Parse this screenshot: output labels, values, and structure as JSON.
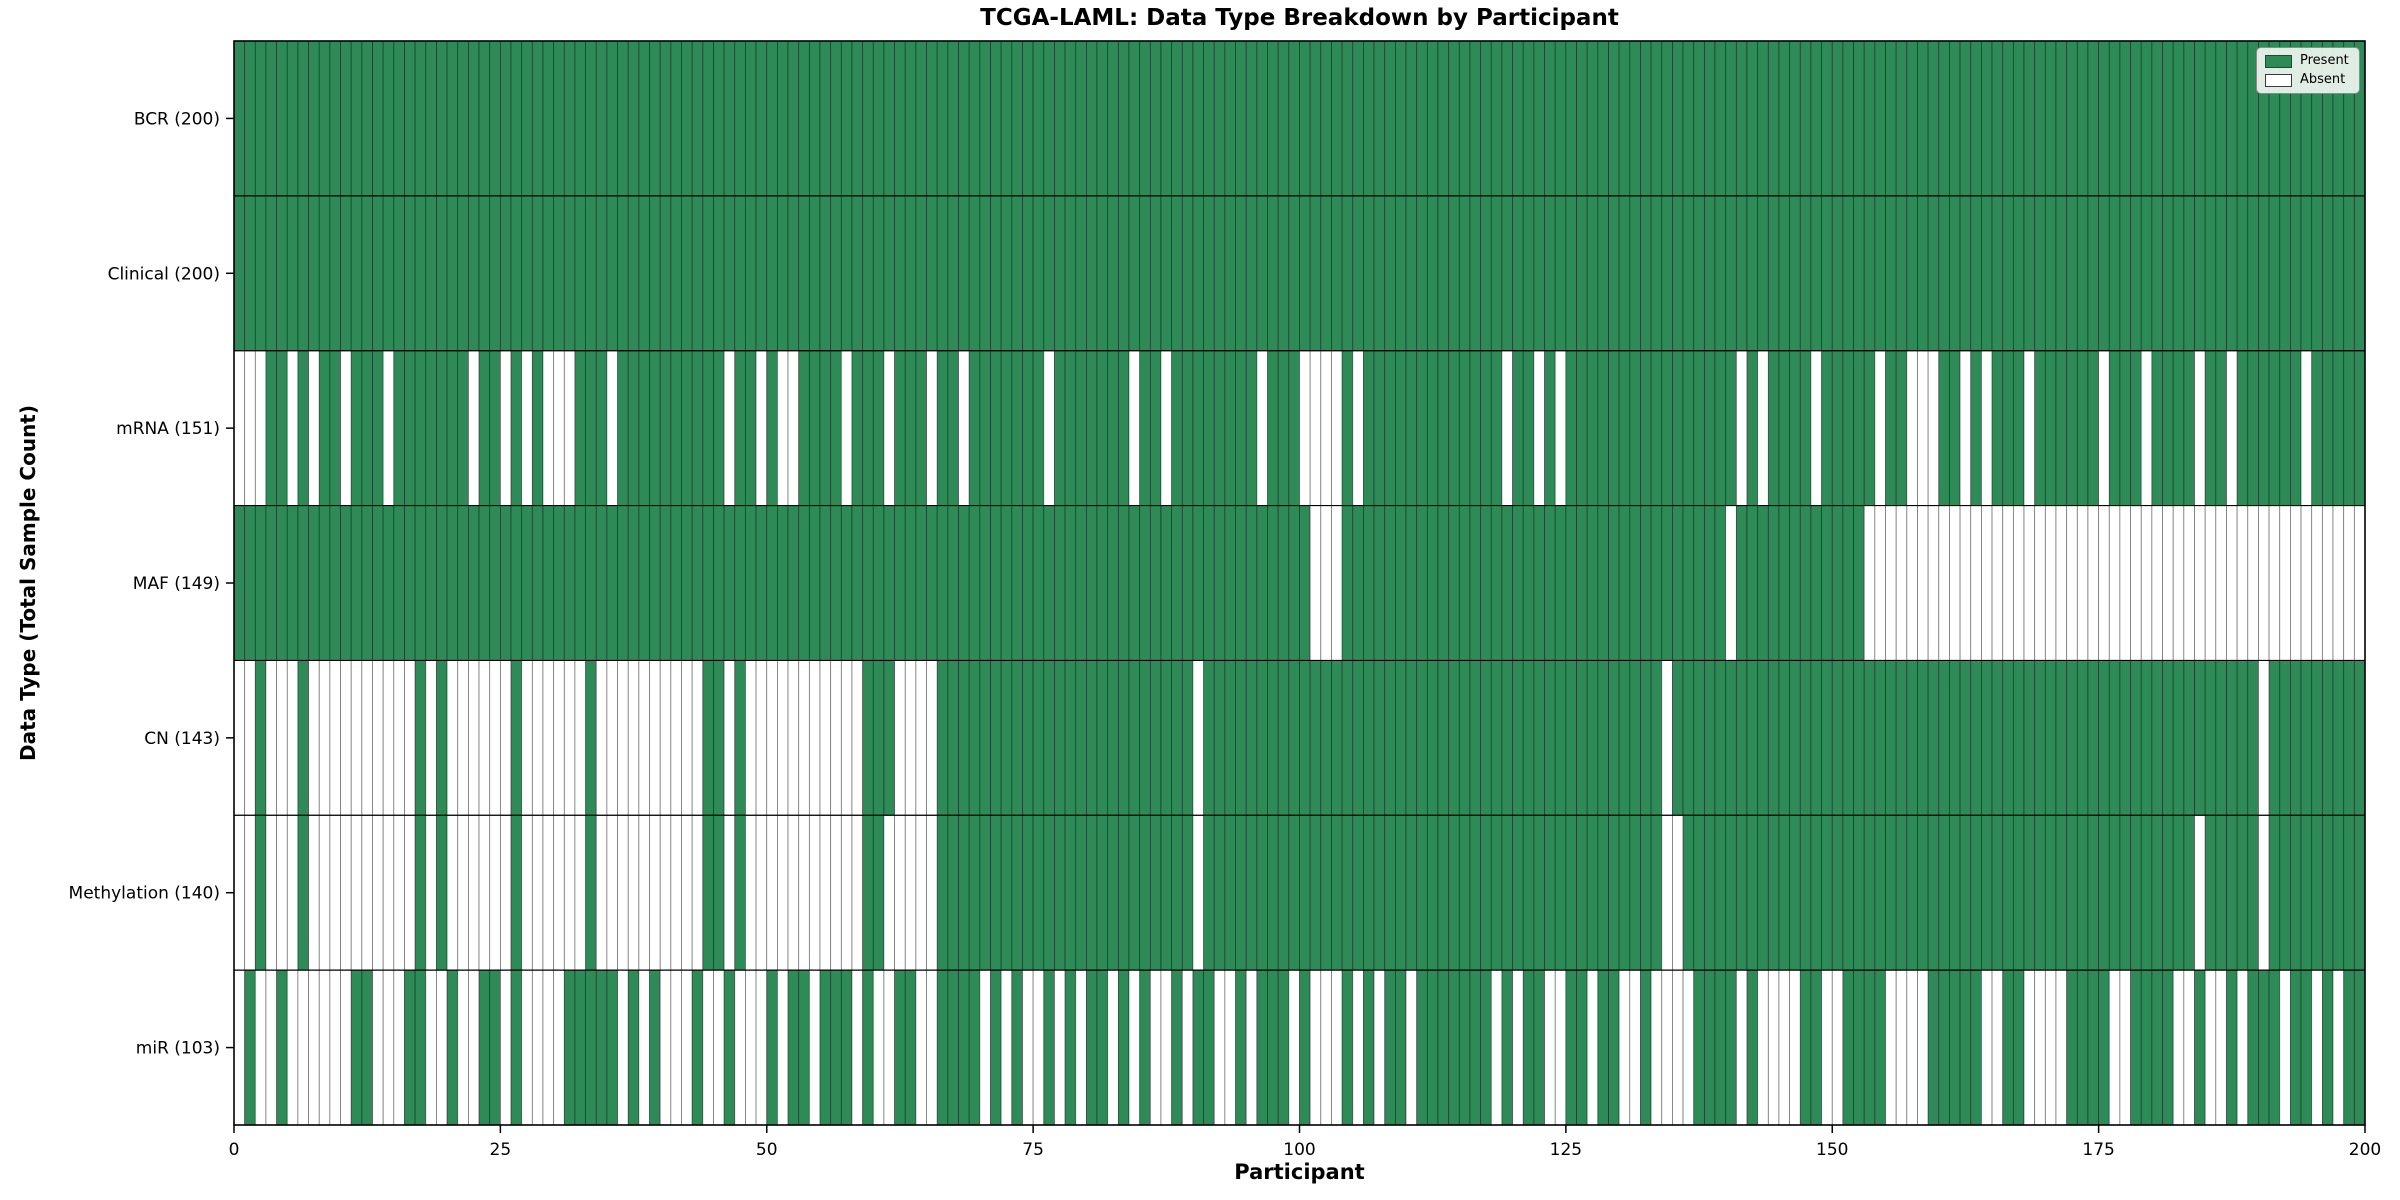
{
  "chart_data": {
    "type": "heatmap",
    "title": "TCGA-LAML: Data Type Breakdown by Participant",
    "xlabel": "Participant",
    "ylabel": "Data Type (Total Sample Count)",
    "n_participants": 200,
    "x_ticks": [
      0,
      25,
      50,
      75,
      100,
      125,
      150,
      175,
      200
    ],
    "present_color": "#2e8b57",
    "absent_color": "#ffffff",
    "cell_edge_color": "rgba(0,0,0,0.45)",
    "legend": [
      {
        "label": "Present",
        "color": "#2e8b57"
      },
      {
        "label": "Absent",
        "color": "#ffffff"
      }
    ],
    "legend_position": "upper right",
    "grid": false,
    "rows": [
      {
        "label": "BCR (200)",
        "name": "BCR",
        "count": 200,
        "absent_ranges": []
      },
      {
        "label": "Clinical (200)",
        "name": "Clinical",
        "count": 200,
        "absent_ranges": []
      },
      {
        "label": "mRNA (151)",
        "name": "mRNA",
        "count": 151,
        "absent_ranges": [
          [
            0,
            2
          ],
          [
            5,
            5
          ],
          [
            7,
            7
          ],
          [
            10,
            10
          ],
          [
            14,
            14
          ],
          [
            22,
            22
          ],
          [
            25,
            25
          ],
          [
            27,
            27
          ],
          [
            29,
            31
          ],
          [
            35,
            35
          ],
          [
            46,
            46
          ],
          [
            49,
            49
          ],
          [
            51,
            52
          ],
          [
            57,
            57
          ],
          [
            61,
            61
          ],
          [
            65,
            65
          ],
          [
            68,
            68
          ],
          [
            76,
            76
          ],
          [
            84,
            84
          ],
          [
            87,
            87
          ],
          [
            96,
            96
          ],
          [
            100,
            103
          ],
          [
            105,
            105
          ],
          [
            119,
            119
          ],
          [
            122,
            122
          ],
          [
            124,
            124
          ],
          [
            141,
            141
          ],
          [
            143,
            143
          ],
          [
            148,
            148
          ],
          [
            154,
            154
          ],
          [
            157,
            159
          ],
          [
            162,
            162
          ],
          [
            164,
            164
          ],
          [
            168,
            168
          ],
          [
            175,
            175
          ],
          [
            179,
            179
          ],
          [
            184,
            184
          ],
          [
            187,
            187
          ],
          [
            194,
            194
          ]
        ]
      },
      {
        "label": "MAF (149)",
        "name": "MAF",
        "count": 149,
        "absent_ranges": [
          [
            101,
            103
          ],
          [
            140,
            140
          ],
          [
            153,
            199
          ]
        ]
      },
      {
        "label": "CN (143)",
        "name": "CN",
        "count": 143,
        "absent_ranges": [
          [
            0,
            1
          ],
          [
            3,
            5
          ],
          [
            7,
            16
          ],
          [
            18,
            18
          ],
          [
            20,
            25
          ],
          [
            27,
            32
          ],
          [
            34,
            43
          ],
          [
            46,
            46
          ],
          [
            48,
            58
          ],
          [
            62,
            65
          ],
          [
            90,
            90
          ],
          [
            134,
            134
          ],
          [
            190,
            190
          ]
        ]
      },
      {
        "label": "Methylation (140)",
        "name": "Methylation",
        "count": 140,
        "absent_ranges": [
          [
            0,
            1
          ],
          [
            3,
            5
          ],
          [
            7,
            16
          ],
          [
            18,
            18
          ],
          [
            20,
            25
          ],
          [
            27,
            32
          ],
          [
            34,
            43
          ],
          [
            46,
            46
          ],
          [
            48,
            58
          ],
          [
            61,
            65
          ],
          [
            90,
            90
          ],
          [
            134,
            135
          ],
          [
            184,
            184
          ],
          [
            190,
            190
          ]
        ]
      },
      {
        "label": "miR (103)",
        "name": "miR",
        "count": 103,
        "absent_ranges": [
          [
            0,
            0
          ],
          [
            2,
            3
          ],
          [
            5,
            10
          ],
          [
            13,
            15
          ],
          [
            18,
            19
          ],
          [
            21,
            22
          ],
          [
            25,
            25
          ],
          [
            27,
            30
          ],
          [
            36,
            36
          ],
          [
            38,
            38
          ],
          [
            40,
            42
          ],
          [
            44,
            45
          ],
          [
            47,
            49
          ],
          [
            51,
            51
          ],
          [
            54,
            54
          ],
          [
            58,
            58
          ],
          [
            60,
            61
          ],
          [
            64,
            65
          ],
          [
            70,
            70
          ],
          [
            72,
            72
          ],
          [
            74,
            75
          ],
          [
            77,
            77
          ],
          [
            79,
            79
          ],
          [
            82,
            82
          ],
          [
            84,
            84
          ],
          [
            86,
            87
          ],
          [
            89,
            89
          ],
          [
            92,
            93
          ],
          [
            95,
            95
          ],
          [
            99,
            99
          ],
          [
            101,
            103
          ],
          [
            105,
            105
          ],
          [
            107,
            107
          ],
          [
            110,
            110
          ],
          [
            118,
            118
          ],
          [
            120,
            120
          ],
          [
            123,
            124
          ],
          [
            127,
            127
          ],
          [
            130,
            131
          ],
          [
            133,
            136
          ],
          [
            141,
            141
          ],
          [
            143,
            146
          ],
          [
            149,
            150
          ],
          [
            155,
            158
          ],
          [
            164,
            165
          ],
          [
            168,
            171
          ],
          [
            176,
            177
          ],
          [
            182,
            183
          ],
          [
            185,
            186
          ],
          [
            188,
            188
          ],
          [
            192,
            192
          ],
          [
            195,
            195
          ],
          [
            197,
            197
          ]
        ]
      }
    ]
  }
}
